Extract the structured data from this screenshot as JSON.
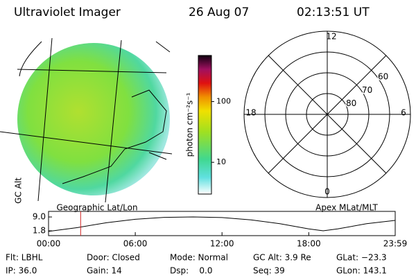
{
  "header": {
    "title": "Ultraviolet Imager",
    "date": "26 Aug 07",
    "time": "02:13:51 UT"
  },
  "image": {
    "label": "Geographic Lat/Lon"
  },
  "colorbar": {
    "label": "photon cm⁻²s⁻¹",
    "log": true,
    "lim": [
      3,
      575
    ],
    "ticks": [
      10,
      100
    ]
  },
  "polar": {
    "label": "Apex MLat/MLT",
    "mlt_labels": {
      "top": "12",
      "left": "18",
      "right": "6",
      "bottom": "0"
    },
    "outer_lat": 50,
    "lat_labels": [
      80,
      70,
      60
    ]
  },
  "alt_plot": {
    "ylabel": "GC Alt",
    "ylim": [
      -0.7,
      11.9
    ],
    "yticks": [
      {
        "value": 1.8,
        "label": "1.8"
      },
      {
        "value": 9.0,
        "label": "9.0"
      }
    ],
    "xlim": [
      0,
      23.98
    ],
    "xticks": [
      {
        "value": 0,
        "label": "00:00"
      },
      {
        "value": 6,
        "label": "06:00"
      },
      {
        "value": 12,
        "label": "12:00"
      },
      {
        "value": 18,
        "label": "18:00"
      },
      {
        "value": 23.98,
        "label": "23:59"
      }
    ],
    "x": [
      0,
      2,
      4,
      6,
      8,
      10,
      12,
      14,
      16,
      18,
      19,
      20,
      22,
      23.98
    ],
    "values": [
      1.5,
      3.5,
      6,
      7.8,
      8.8,
      9.0,
      8.7,
      7.5,
      5.5,
      2.8,
      1.8,
      2.8,
      5.5,
      7.2
    ],
    "marker_x": 2.22,
    "marker_color": "#d02020"
  },
  "info": {
    "rows": [
      [
        "Flt: LBHL",
        "Door: Closed",
        "Mode: Normal",
        "GC Alt: 3.9 Re",
        "GLat: −23.3"
      ],
      [
        "IP: 36.0",
        "Gain: 14",
        "Dsp:    0.0",
        "Seq: 39",
        "GLon: 143.1"
      ]
    ]
  }
}
